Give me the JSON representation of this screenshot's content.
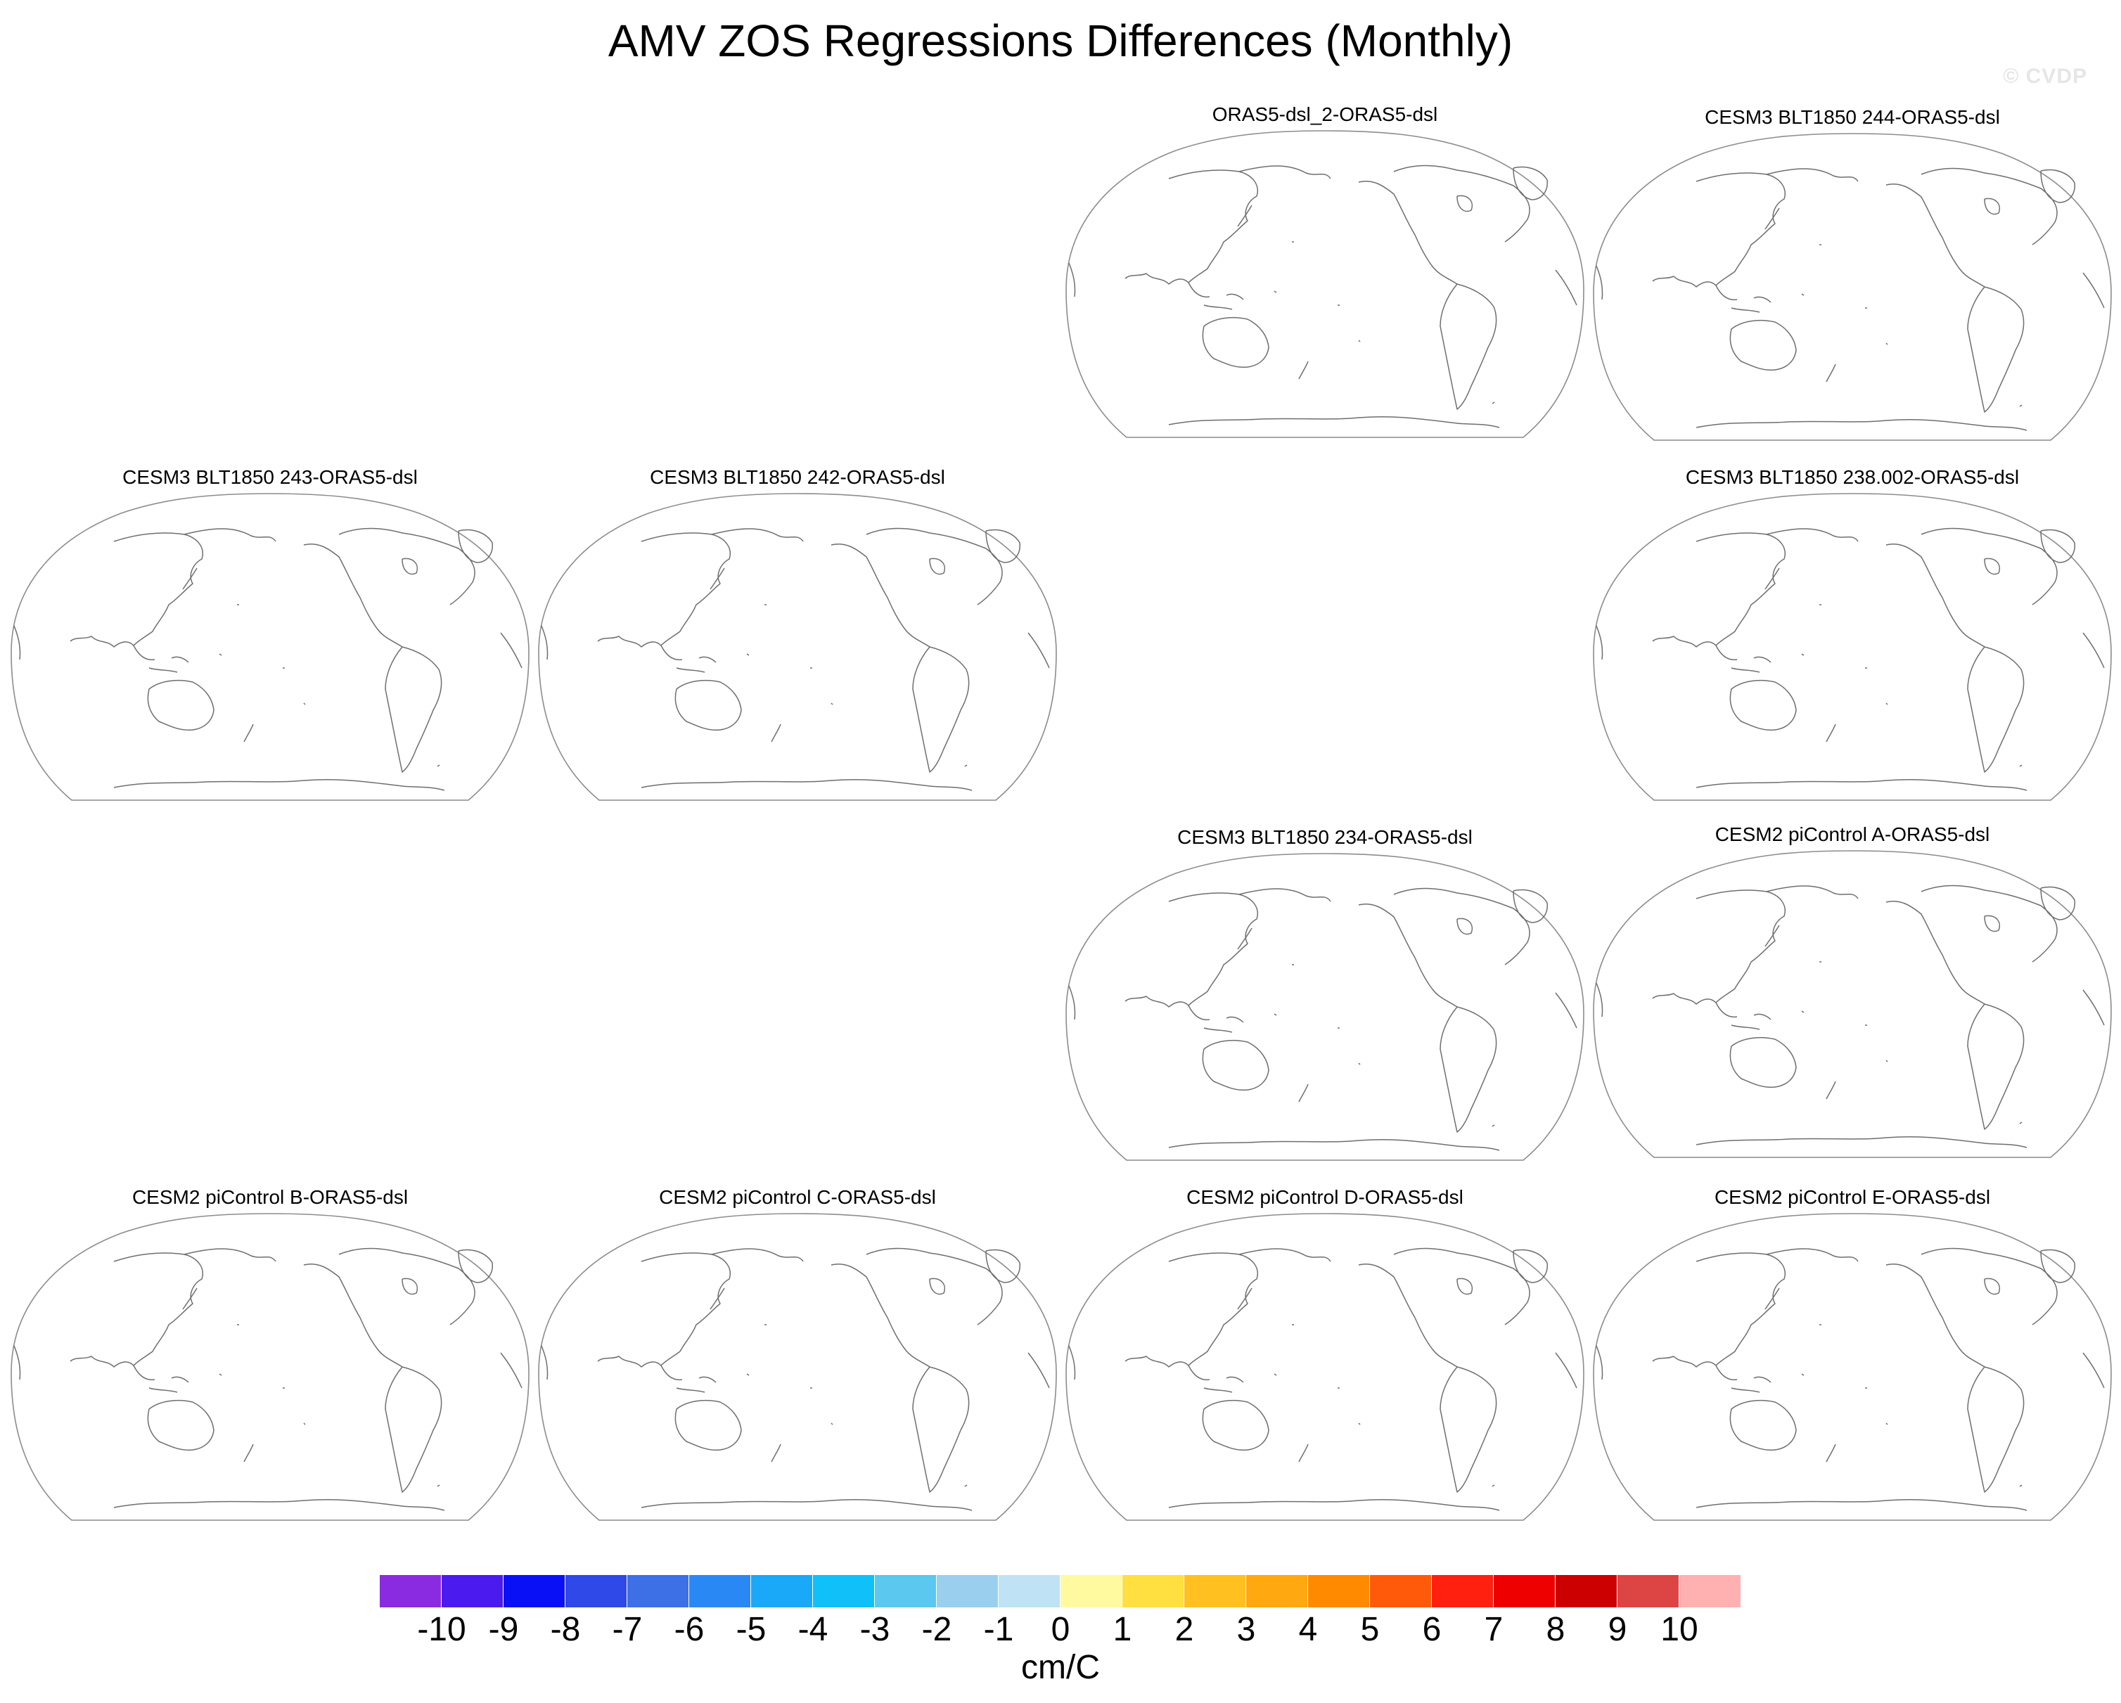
{
  "title": "AMV ZOS Regressions Differences (Monthly)",
  "watermark": "© CVDP",
  "panels": [
    {
      "label": "ORAS5-dsl_2-ORAS5-dsl"
    },
    {
      "label": "CESM3 BLT1850 244-ORAS5-dsl"
    },
    {
      "label": "CESM3 BLT1850 243-ORAS5-dsl"
    },
    {
      "label": "CESM3 BLT1850 242-ORAS5-dsl"
    },
    {
      "label": "CESM3 BLT1850 238.002-ORAS5-dsl"
    },
    {
      "label": "CESM3 BLT1850 234-ORAS5-dsl"
    },
    {
      "label": "CESM2 piControl A-ORAS5-dsl"
    },
    {
      "label": "CESM2 piControl B-ORAS5-dsl"
    },
    {
      "label": "CESM2 piControl C-ORAS5-dsl"
    },
    {
      "label": "CESM2 piControl D-ORAS5-dsl"
    },
    {
      "label": "CESM2 piControl E-ORAS5-dsl"
    }
  ],
  "colorbar": {
    "colors": [
      "#8a2be2",
      "#4b1aef",
      "#0a10f5",
      "#2f48e8",
      "#3d6fe6",
      "#2a88f5",
      "#1aa8f8",
      "#10c0f8",
      "#5ac8ef",
      "#9ad0ee",
      "#bfe2f5",
      "#fffaa0",
      "#ffe040",
      "#ffc020",
      "#ffa810",
      "#ff8a00",
      "#ff5a0a",
      "#ff2010",
      "#ee0000",
      "#cc0000",
      "#dd4444",
      "#ffb0b0"
    ],
    "labels": [
      "-10",
      "-9",
      "-8",
      "-7",
      "-6",
      "-5",
      "-4",
      "-3",
      "-2",
      "-1",
      "0",
      "1",
      "2",
      "3",
      "4",
      "5",
      "6",
      "7",
      "8",
      "9",
      "10"
    ],
    "units": "cm/C"
  }
}
